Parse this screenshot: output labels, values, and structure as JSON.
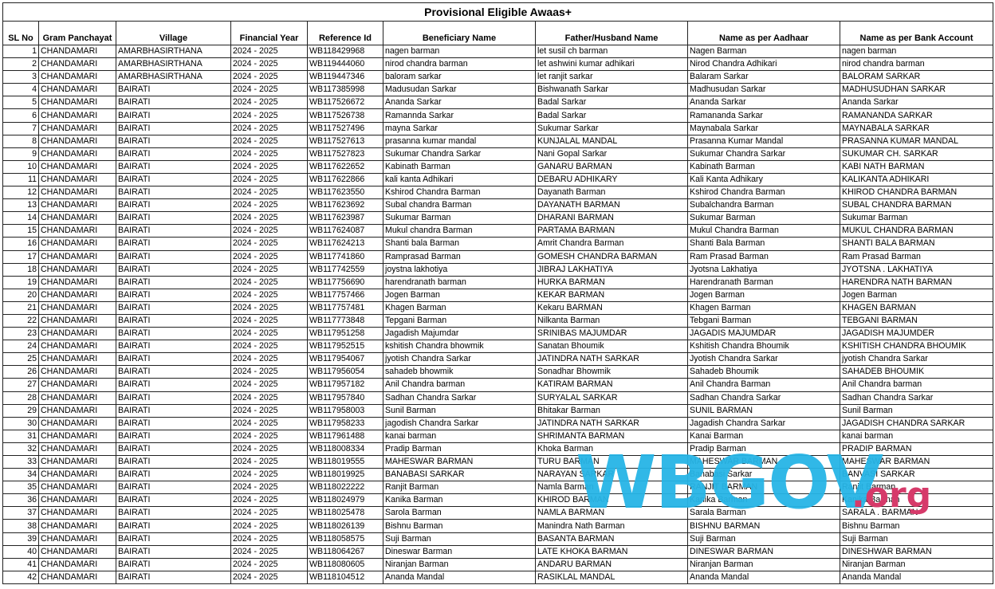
{
  "title": "Provisional Eligible Awaas+",
  "headers": [
    "SL No",
    "Gram Panchayat",
    "Village",
    "Financial Year",
    "Reference Id",
    "Beneficiary Name",
    "Father/Husband Name",
    "Name as per Aadhaar",
    "Name as per Bank Account"
  ],
  "watermark": {
    "main": "WBGOV",
    "suffix": ".org",
    "main_color": "#27b5e6",
    "suffix_color": "#d63a6a"
  },
  "rows": [
    [
      "1",
      "CHANDAMARI",
      "AMARBHASIRTHANA",
      "2024 - 2025",
      "WB118429968",
      "nagen barman",
      "let susil ch barman",
      "Nagen Barman",
      "nagen barman"
    ],
    [
      "2",
      "CHANDAMARI",
      "AMARBHASIRTHANA",
      "2024 - 2025",
      "WB119444060",
      "nirod chandra barman",
      "let ashwini kumar adhikari",
      "Nirod Chandra Adhikari",
      "nirod chandra barman"
    ],
    [
      "3",
      "CHANDAMARI",
      "AMARBHASIRTHANA",
      "2024 - 2025",
      "WB119447346",
      "baloram sarkar",
      "let ranjit sarkar",
      "Balaram Sarkar",
      "BALORAM SARKAR"
    ],
    [
      "4",
      "CHANDAMARI",
      "BAIRATI",
      "2024 - 2025",
      "WB117385998",
      "Madusudan Sarkar",
      "Bishwanath Sarkar",
      "Madhusudan Sarkar",
      "MADHUSUDHAN SARKAR"
    ],
    [
      "5",
      "CHANDAMARI",
      "BAIRATI",
      "2024 - 2025",
      "WB117526672",
      "Ananda Sarkar",
      "Badal Sarkar",
      "Ananda Sarkar",
      "Ananda Sarkar"
    ],
    [
      "6",
      "CHANDAMARI",
      "BAIRATI",
      "2024 - 2025",
      "WB117526738",
      "Ramannda Sarkar",
      "Badal Sarkar",
      "Ramananda Sarkar",
      "RAMANANDA SARKAR"
    ],
    [
      "7",
      "CHANDAMARI",
      "BAIRATI",
      "2024 - 2025",
      "WB117527496",
      "mayna Sarkar",
      "Sukumar Sarkar",
      "Maynabala Sarkar",
      "MAYNABALA SARKAR"
    ],
    [
      "8",
      "CHANDAMARI",
      "BAIRATI",
      "2024 - 2025",
      "WB117527613",
      "prasanna kumar mandal",
      "KUNJALAL MANDAL",
      "Prasanna Kumar Mandal",
      "PRASANNA KUMAR MANDAL"
    ],
    [
      "9",
      "CHANDAMARI",
      "BAIRATI",
      "2024 - 2025",
      "WB117527823",
      "Sukumar Chandra Sarkar",
      "Nani Gopal Sarkar",
      "Sukumar Chandra Sarkar",
      "SUKUMAR CH. SARKAR"
    ],
    [
      "10",
      "CHANDAMARI",
      "BAIRATI",
      "2024 - 2025",
      "WB117622652",
      "Kabinath Barman",
      "GANARU BARMAN",
      "Kabinath Barman",
      "KABI NATH BARMAN"
    ],
    [
      "11",
      "CHANDAMARI",
      "BAIRATI",
      "2024 - 2025",
      "WB117622866",
      "kali kanta Adhikari",
      "DEBARU ADHIKARY",
      "Kali Kanta Adhikary",
      "KALIKANTA ADHIKARI"
    ],
    [
      "12",
      "CHANDAMARI",
      "BAIRATI",
      "2024 - 2025",
      "WB117623550",
      "Kshirod Chandra Barman",
      "Dayanath Barman",
      "Kshirod Chandra Barman",
      "KHIROD CHANDRA BARMAN"
    ],
    [
      "13",
      "CHANDAMARI",
      "BAIRATI",
      "2024 - 2025",
      "WB117623692",
      "Subal chandra Barman",
      "DAYANATH BARMAN",
      "Subalchandra Barman",
      "SUBAL CHANDRA BARMAN"
    ],
    [
      "14",
      "CHANDAMARI",
      "BAIRATI",
      "2024 - 2025",
      "WB117623987",
      "Sukumar Barman",
      "DHARANI BARMAN",
      "Sukumar Barman",
      "Sukumar Barman"
    ],
    [
      "15",
      "CHANDAMARI",
      "BAIRATI",
      "2024 - 2025",
      "WB117624087",
      "Mukul chandra Barman",
      "PARTAMA BARMAN",
      "Mukul Chandra Barman",
      "MUKUL CHANDRA BARMAN"
    ],
    [
      "16",
      "CHANDAMARI",
      "BAIRATI",
      "2024 - 2025",
      "WB117624213",
      "Shanti bala Barman",
      "Amrit Chandra Barman",
      "Shanti Bala Barman",
      "SHANTI BALA BARMAN"
    ],
    [
      "17",
      "CHANDAMARI",
      "BAIRATI",
      "2024 - 2025",
      "WB117741860",
      "Ramprasad Barman",
      "GOMESH CHANDRA BARMAN",
      "Ram Prasad Barman",
      "Ram Prasad Barman"
    ],
    [
      "18",
      "CHANDAMARI",
      "BAIRATI",
      "2024 - 2025",
      "WB117742559",
      "joystna lakhotiya",
      "JIBRAJ LAKHATIYA",
      "Jyotsna Lakhatiya",
      "JYOTSNA . LAKHATIYA"
    ],
    [
      "19",
      "CHANDAMARI",
      "BAIRATI",
      "2024 - 2025",
      "WB117756690",
      "harendranath barman",
      "HURKA BARMAN",
      "Harendranath Barman",
      "HARENDRA NATH BARMAN"
    ],
    [
      "20",
      "CHANDAMARI",
      "BAIRATI",
      "2024 - 2025",
      "WB117757466",
      "Jogen Barman",
      "KEKAR BARMAN",
      "Jogen Barman",
      "Jogen Barman"
    ],
    [
      "21",
      "CHANDAMARI",
      "BAIRATI",
      "2024 - 2025",
      "WB117757481",
      "Khagen Barman",
      "Kekaru BARMAN",
      "Khagen Barman",
      "KHAGEN BARMAN"
    ],
    [
      "22",
      "CHANDAMARI",
      "BAIRATI",
      "2024 - 2025",
      "WB117773848",
      "Tepgani Barman",
      "Nilkanta Barman",
      "Tebgani Barman",
      "TEBGANI BARMAN"
    ],
    [
      "23",
      "CHANDAMARI",
      "BAIRATI",
      "2024 - 2025",
      "WB117951258",
      "Jagadish Majumdar",
      "SRINIBAS MAJUMDAR",
      "JAGADIS MAJUMDAR",
      "JAGADISH MAJUMDER"
    ],
    [
      "24",
      "CHANDAMARI",
      "BAIRATI",
      "2024 - 2025",
      "WB117952515",
      "kshitish Chandra bhowmik",
      "Sanatan Bhoumik",
      "Kshitish Chandra Bhoumik",
      "KSHITISH CHANDRA BHOUMIK"
    ],
    [
      "25",
      "CHANDAMARI",
      "BAIRATI",
      "2024 - 2025",
      "WB117954067",
      "jyotish Chandra Sarkar",
      "JATINDRA NATH SARKAR",
      "Jyotish Chandra Sarkar",
      "jyotish Chandra Sarkar"
    ],
    [
      "26",
      "CHANDAMARI",
      "BAIRATI",
      "2024 - 2025",
      "WB117956054",
      "sahadeb bhowmik",
      "Sonadhar Bhowmik",
      "Sahadeb Bhoumik",
      "SAHADEB BHOUMIK"
    ],
    [
      "27",
      "CHANDAMARI",
      "BAIRATI",
      "2024 - 2025",
      "WB117957182",
      "Anil Chandra barman",
      "KATIRAM BARMAN",
      "Anil Chandra Barman",
      "Anil Chandra barman"
    ],
    [
      "28",
      "CHANDAMARI",
      "BAIRATI",
      "2024 - 2025",
      "WB117957840",
      "Sadhan Chandra Sarkar",
      "SURYALAL SARKAR",
      "Sadhan Chandra Sarkar",
      "Sadhan Chandra Sarkar"
    ],
    [
      "29",
      "CHANDAMARI",
      "BAIRATI",
      "2024 - 2025",
      "WB117958003",
      "Sunil Barman",
      "Bhitakar Barman",
      "SUNIL BARMAN",
      "Sunil Barman"
    ],
    [
      "30",
      "CHANDAMARI",
      "BAIRATI",
      "2024 - 2025",
      "WB117958233",
      "jagodish Chandra Sarkar",
      "JATINDRA NATH SARKAR",
      "Jagadish Chandra Sarkar",
      "JAGADISH CHANDRA SARKAR"
    ],
    [
      "31",
      "CHANDAMARI",
      "BAIRATI",
      "2024 - 2025",
      "WB117961488",
      "kanai barman",
      "SHRIMANTA BARMAN",
      "Kanai Barman",
      "kanai barman"
    ],
    [
      "32",
      "CHANDAMARI",
      "BAIRATI",
      "2024 - 2025",
      "WB118008334",
      "Pradip Barman",
      "Khoka Barman",
      "Pradip Barman",
      "PRADIP BARMAN"
    ],
    [
      "33",
      "CHANDAMARI",
      "BAIRATI",
      "2024 - 2025",
      "WB118019555",
      "MAHESWAR BARMAN",
      "TURU BARMAN",
      "MAHESWAR BARMAN",
      "MAHESWAR BARMAN"
    ],
    [
      "34",
      "CHANDAMARI",
      "BAIRATI",
      "2024 - 2025",
      "WB118019925",
      "BANABASI SARKAR",
      "NARAYAN SARKAR",
      "Banabasi Sarkar",
      "BANVASI SARKAR"
    ],
    [
      "35",
      "CHANDAMARI",
      "BAIRATI",
      "2024 - 2025",
      "WB118022222",
      "Ranjit Barman",
      "Namla Barman",
      "RANJIT BARMAN",
      "Ranjit Barman"
    ],
    [
      "36",
      "CHANDAMARI",
      "BAIRATI",
      "2024 - 2025",
      "WB118024979",
      "Kanika Barman",
      "KHIROD BARMAN",
      "Kanika Barman",
      "Kanika Barman"
    ],
    [
      "37",
      "CHANDAMARI",
      "BAIRATI",
      "2024 - 2025",
      "WB118025478",
      "Sarola Barman",
      "NAMLA BARMAN",
      "Sarala Barman",
      "SARALA . BARMAN"
    ],
    [
      "38",
      "CHANDAMARI",
      "BAIRATI",
      "2024 - 2025",
      "WB118026139",
      "Bishnu Barman",
      "Manindra Nath Barman",
      "BISHNU BARMAN",
      "Bishnu Barman"
    ],
    [
      "39",
      "CHANDAMARI",
      "BAIRATI",
      "2024 - 2025",
      "WB118058575",
      "Suji Barman",
      "BASANTA BARMAN",
      "Suji Barman",
      "Suji Barman"
    ],
    [
      "40",
      "CHANDAMARI",
      "BAIRATI",
      "2024 - 2025",
      "WB118064267",
      "Dineswar Barman",
      "LATE KHOKA BARMAN",
      "DINESWAR BARMAN",
      "DINESHWAR BARMAN"
    ],
    [
      "41",
      "CHANDAMARI",
      "BAIRATI",
      "2024 - 2025",
      "WB118080605",
      "Niranjan Barman",
      "ANDARU BARMAN",
      "Niranjan Barman",
      "Niranjan Barman"
    ],
    [
      "42",
      "CHANDAMARI",
      "BAIRATI",
      "2024 - 2025",
      "WB118104512",
      "Ananda Mandal",
      "RASIKLAL MANDAL",
      "Ananda Mandal",
      "Ananda Mandal"
    ]
  ]
}
